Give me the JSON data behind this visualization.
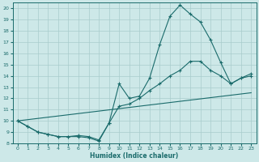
{
  "xlabel": "Humidex (Indice chaleur)",
  "bg_color": "#cde8e8",
  "line_color": "#1a6b6b",
  "grid_color": "#a8cccc",
  "xlim": [
    -0.5,
    23.5
  ],
  "ylim": [
    8,
    20.5
  ],
  "yticks": [
    8,
    9,
    10,
    11,
    12,
    13,
    14,
    15,
    16,
    17,
    18,
    19,
    20
  ],
  "xticks": [
    0,
    1,
    2,
    3,
    4,
    5,
    6,
    7,
    8,
    9,
    10,
    11,
    12,
    13,
    14,
    15,
    16,
    17,
    18,
    19,
    20,
    21,
    22,
    23
  ],
  "line1_x": [
    0,
    1,
    2,
    3,
    4,
    5,
    6,
    7,
    8,
    9,
    10,
    11,
    12,
    13,
    14,
    15,
    16,
    17,
    18,
    19,
    20,
    21,
    22,
    23
  ],
  "line1_y": [
    10.0,
    9.5,
    9.0,
    8.8,
    8.6,
    8.6,
    8.6,
    8.5,
    8.2,
    9.8,
    13.3,
    12.0,
    12.2,
    13.8,
    16.8,
    19.3,
    20.3,
    19.5,
    18.8,
    17.2,
    15.2,
    13.3,
    13.8,
    14.0
  ],
  "line2_x": [
    0,
    1,
    2,
    3,
    4,
    5,
    6,
    7,
    8,
    9,
    10,
    11,
    12,
    13,
    14,
    15,
    16,
    17,
    18,
    19,
    20,
    21,
    22,
    23
  ],
  "line2_y": [
    10.0,
    9.5,
    9.0,
    8.8,
    8.6,
    8.6,
    8.7,
    8.6,
    8.3,
    9.8,
    11.3,
    11.5,
    12.0,
    12.7,
    13.3,
    14.0,
    14.5,
    15.3,
    15.3,
    14.5,
    14.0,
    13.3,
    13.8,
    14.2
  ],
  "line3_x": [
    0,
    23
  ],
  "line3_y": [
    10.0,
    12.5
  ]
}
